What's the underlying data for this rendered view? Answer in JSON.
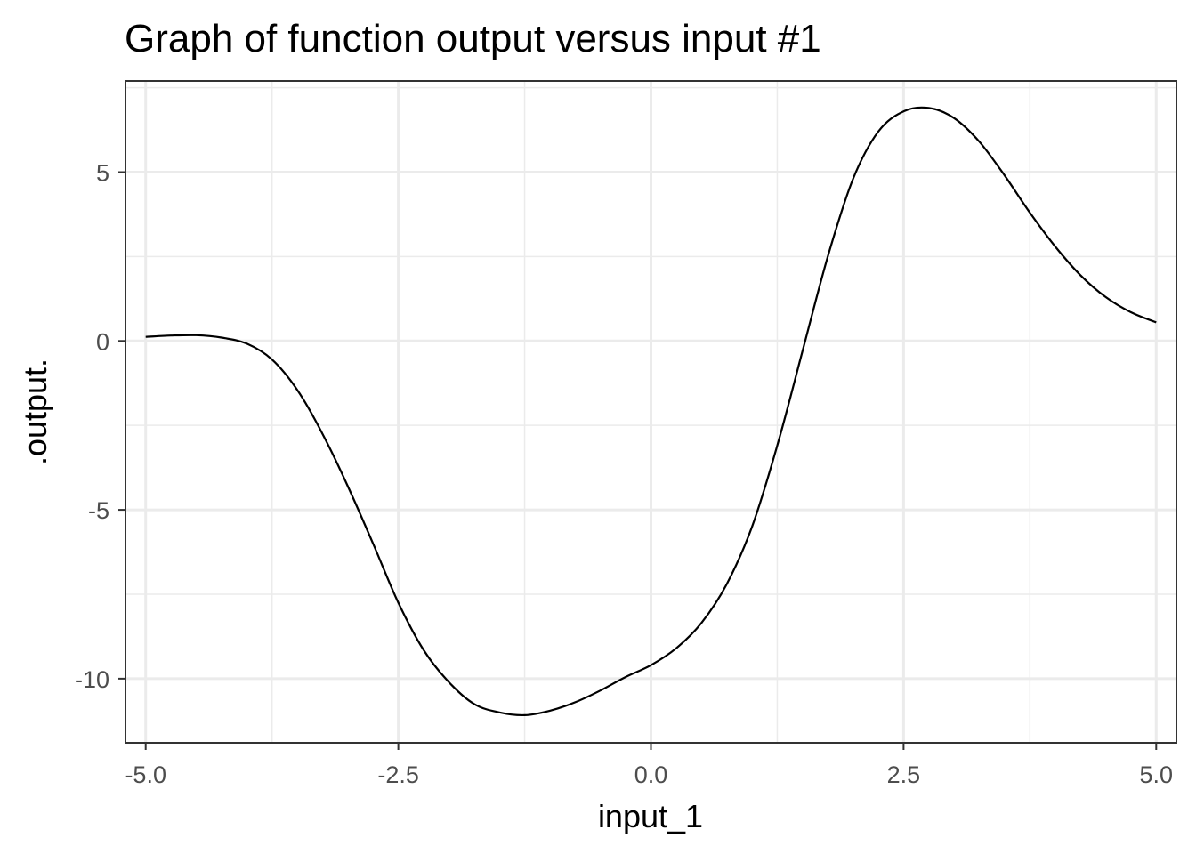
{
  "chart_data": {
    "type": "line",
    "title": "Graph of function output versus input #1",
    "xlabel": "input_1",
    "ylabel": ".output.",
    "xlim": [
      -5.2,
      5.2
    ],
    "ylim": [
      -11.9,
      7.7
    ],
    "grid": true,
    "x_ticks": [
      -5.0,
      -2.5,
      0.0,
      2.5,
      5.0
    ],
    "x_tick_labels": [
      "-5.0",
      "-2.5",
      "0.0",
      "2.5",
      "5.0"
    ],
    "x_minor_ticks": [
      -3.75,
      -1.25,
      1.25,
      3.75
    ],
    "y_ticks": [
      5,
      0,
      -5,
      -10
    ],
    "y_tick_labels": [
      "5",
      "0",
      "-5",
      "-10"
    ],
    "y_minor_ticks": [
      7.5,
      2.5,
      -2.5,
      -7.5
    ],
    "series": [
      {
        "color": "#000000",
        "x": [
          -5.0,
          -4.75,
          -4.5,
          -4.25,
          -4.0,
          -3.75,
          -3.5,
          -3.25,
          -3.0,
          -2.75,
          -2.5,
          -2.25,
          -2.0,
          -1.75,
          -1.5,
          -1.25,
          -1.0,
          -0.75,
          -0.5,
          -0.25,
          0.0,
          0.25,
          0.5,
          0.75,
          1.0,
          1.25,
          1.5,
          1.75,
          2.0,
          2.25,
          2.5,
          2.75,
          3.0,
          3.25,
          3.5,
          3.75,
          4.0,
          4.25,
          4.5,
          4.75,
          5.0
        ],
        "y": [
          0.12,
          0.16,
          0.17,
          0.1,
          -0.08,
          -0.55,
          -1.45,
          -2.75,
          -4.3,
          -6.0,
          -7.75,
          -9.15,
          -10.1,
          -10.75,
          -11.0,
          -11.08,
          -10.95,
          -10.7,
          -10.35,
          -9.95,
          -9.6,
          -9.1,
          -8.35,
          -7.2,
          -5.5,
          -3.1,
          -0.3,
          2.5,
          4.8,
          6.2,
          6.8,
          6.9,
          6.6,
          5.9,
          4.9,
          3.8,
          2.8,
          1.95,
          1.3,
          0.85,
          0.55
        ]
      }
    ]
  }
}
